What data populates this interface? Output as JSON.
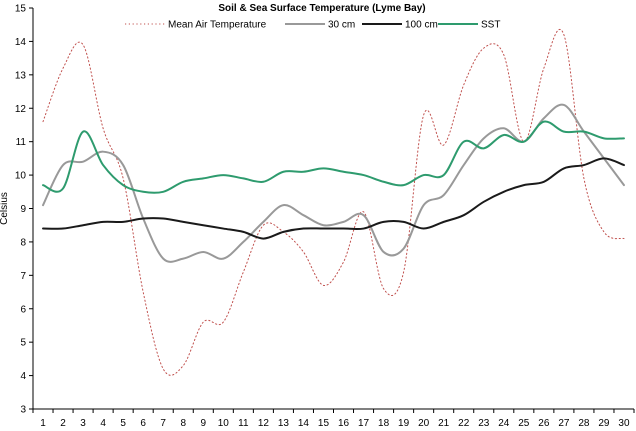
{
  "chart_data": {
    "type": "line",
    "title": "Soil & Sea Surface Temperature (Lyme Bay)",
    "xlabel": "",
    "ylabel": "Celsius",
    "ylim": [
      3,
      15
    ],
    "yticks": [
      3,
      4,
      5,
      6,
      7,
      8,
      9,
      10,
      11,
      12,
      13,
      14,
      15
    ],
    "x": [
      1,
      2,
      3,
      4,
      5,
      6,
      7,
      8,
      9,
      10,
      11,
      12,
      13,
      14,
      15,
      16,
      17,
      18,
      19,
      20,
      21,
      22,
      23,
      24,
      25,
      26,
      27,
      28,
      29,
      30
    ],
    "grid": false,
    "legend_position": "top",
    "series": [
      {
        "name": "Mean Air Temperature",
        "color": "#c0504d",
        "style": "dotted",
        "values": [
          11.6,
          13.2,
          13.9,
          11.4,
          9.9,
          6.5,
          4.2,
          4.3,
          5.6,
          5.6,
          7.1,
          8.5,
          8.3,
          7.7,
          6.7,
          7.4,
          8.9,
          6.6,
          7.1,
          11.8,
          10.9,
          12.7,
          13.8,
          13.6,
          11.0,
          13.2,
          14.2,
          9.9,
          8.3,
          8.1
        ]
      },
      {
        "name": "30 cm",
        "color": "#999999",
        "style": "solid",
        "values": [
          9.1,
          10.3,
          10.4,
          10.7,
          10.3,
          8.7,
          7.5,
          7.5,
          7.7,
          7.5,
          8.0,
          8.6,
          9.1,
          8.8,
          8.5,
          8.6,
          8.8,
          7.7,
          7.8,
          9.1,
          9.4,
          10.3,
          11.1,
          11.4,
          11.0,
          11.7,
          12.1,
          11.3,
          10.5,
          9.7
        ]
      },
      {
        "name": "100 cm",
        "color": "#1a1a1a",
        "style": "solid",
        "values": [
          8.4,
          8.4,
          8.5,
          8.6,
          8.6,
          8.7,
          8.7,
          8.6,
          8.5,
          8.4,
          8.3,
          8.1,
          8.3,
          8.4,
          8.4,
          8.4,
          8.4,
          8.6,
          8.6,
          8.4,
          8.6,
          8.8,
          9.2,
          9.5,
          9.7,
          9.8,
          10.2,
          10.3,
          10.5,
          10.3
        ]
      },
      {
        "name": "SST",
        "color": "#2e9b6e",
        "style": "solid",
        "values": [
          9.7,
          9.6,
          11.3,
          10.3,
          9.7,
          9.5,
          9.5,
          9.8,
          9.9,
          10.0,
          9.9,
          9.8,
          10.1,
          10.1,
          10.2,
          10.1,
          10.0,
          9.8,
          9.7,
          10.0,
          10.0,
          11.0,
          10.8,
          11.2,
          11.0,
          11.6,
          11.3,
          11.3,
          11.1,
          11.1
        ]
      }
    ]
  }
}
